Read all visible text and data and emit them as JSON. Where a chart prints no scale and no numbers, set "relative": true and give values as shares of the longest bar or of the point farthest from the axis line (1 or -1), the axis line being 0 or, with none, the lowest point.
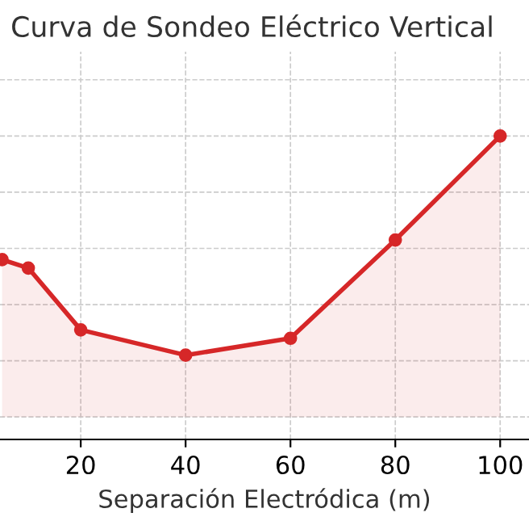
{
  "chart_data": {
    "type": "area",
    "title": "Curva de Sondeo Eléctrico Vertical",
    "xlabel": "Separación Electródica (m)",
    "relative": true,
    "x": [
      5,
      10,
      20,
      40,
      60,
      80,
      100
    ],
    "series": [
      {
        "color": "#d62728",
        "values": [
          0.56,
          0.53,
          0.31,
          0.22,
          0.28,
          0.63,
          1
        ]
      }
    ],
    "xlim": [
      4.6,
      105.5
    ],
    "xticks": [
      20,
      40,
      60,
      80,
      100
    ],
    "grid": true,
    "marker": "circle",
    "line_style": "solid",
    "tick_labels": "x"
  }
}
